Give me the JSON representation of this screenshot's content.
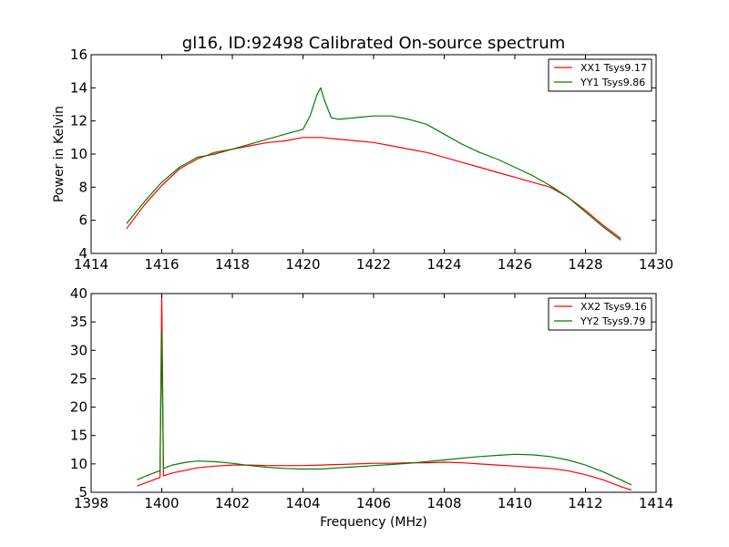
{
  "chart_data": [
    {
      "type": "line",
      "title": "gl16, ID:92498 Calibrated On-source spectrum",
      "xlabel": "",
      "ylabel": "Power in Kelvin",
      "xlim": [
        1414,
        1430
      ],
      "ylim": [
        4,
        16
      ],
      "xticks": [
        "1414",
        "1416",
        "1418",
        "1420",
        "1422",
        "1424",
        "1426",
        "1428",
        "1430"
      ],
      "yticks": [
        "4",
        "6",
        "8",
        "10",
        "12",
        "14",
        "16"
      ],
      "grid": false,
      "legend_position": "top-right",
      "colors": {
        "XX": "#ff0000",
        "YY": "#008000"
      },
      "series": [
        {
          "name": "XX1 Tsys9.17",
          "color": "#ff0000",
          "x": [
            1415.0,
            1415.5,
            1416.0,
            1416.5,
            1417.0,
            1417.5,
            1418.0,
            1418.5,
            1419.0,
            1419.5,
            1420.0,
            1420.5,
            1421.0,
            1421.5,
            1422.0,
            1422.5,
            1423.0,
            1423.5,
            1424.0,
            1424.5,
            1425.0,
            1425.5,
            1426.0,
            1426.5,
            1427.0,
            1427.5,
            1428.0,
            1428.5,
            1429.0
          ],
          "y": [
            5.5,
            6.9,
            8.1,
            9.1,
            9.7,
            10.1,
            10.3,
            10.5,
            10.7,
            10.8,
            11.0,
            11.0,
            10.9,
            10.8,
            10.7,
            10.5,
            10.3,
            10.1,
            9.8,
            9.5,
            9.2,
            8.9,
            8.6,
            8.3,
            8.0,
            7.4,
            6.6,
            5.7,
            4.9
          ]
        },
        {
          "name": "YY1 Tsys9.86",
          "color": "#008000",
          "x": [
            1415.0,
            1415.5,
            1416.0,
            1416.5,
            1417.0,
            1417.5,
            1418.0,
            1418.5,
            1419.0,
            1419.5,
            1420.0,
            1420.2,
            1420.4,
            1420.5,
            1420.6,
            1420.8,
            1421.0,
            1421.5,
            1422.0,
            1422.5,
            1423.0,
            1423.5,
            1424.0,
            1424.5,
            1425.0,
            1425.5,
            1426.0,
            1426.5,
            1427.0,
            1427.5,
            1428.0,
            1428.5,
            1429.0
          ],
          "y": [
            5.8,
            7.1,
            8.3,
            9.2,
            9.8,
            10.0,
            10.3,
            10.6,
            10.9,
            11.2,
            11.5,
            12.3,
            13.6,
            14.0,
            13.3,
            12.2,
            12.1,
            12.2,
            12.3,
            12.3,
            12.1,
            11.8,
            11.2,
            10.6,
            10.1,
            9.7,
            9.2,
            8.7,
            8.1,
            7.4,
            6.5,
            5.6,
            4.8
          ]
        }
      ]
    },
    {
      "type": "line",
      "title": "",
      "xlabel": "Frequency (MHz)",
      "ylabel": "",
      "xlim": [
        1398,
        1414
      ],
      "ylim": [
        5,
        40
      ],
      "xticks": [
        "1398",
        "1400",
        "1402",
        "1404",
        "1406",
        "1408",
        "1410",
        "1412",
        "1414"
      ],
      "yticks": [
        "5",
        "10",
        "15",
        "20",
        "25",
        "30",
        "35",
        "40"
      ],
      "grid": false,
      "legend_position": "top-right",
      "series": [
        {
          "name": "XX2 Tsys9.16",
          "color": "#ff0000",
          "x": [
            1399.3,
            1399.6,
            1399.9,
            1399.95,
            1400.0,
            1400.05,
            1400.3,
            1400.7,
            1401.0,
            1401.5,
            1402.0,
            1402.5,
            1403.0,
            1403.5,
            1404.0,
            1404.5,
            1405.0,
            1405.5,
            1406.0,
            1406.5,
            1407.0,
            1407.5,
            1408.0,
            1408.5,
            1409.0,
            1409.5,
            1410.0,
            1410.5,
            1411.0,
            1411.5,
            1412.0,
            1412.5,
            1413.0,
            1413.3
          ],
          "y": [
            6.1,
            6.8,
            7.5,
            7.6,
            40.0,
            7.9,
            8.4,
            8.9,
            9.3,
            9.6,
            9.8,
            9.8,
            9.7,
            9.7,
            9.7,
            9.8,
            9.9,
            10.0,
            10.1,
            10.1,
            10.2,
            10.2,
            10.3,
            10.2,
            10.0,
            9.8,
            9.6,
            9.4,
            9.2,
            8.8,
            8.1,
            7.2,
            6.0,
            5.4
          ]
        },
        {
          "name": "YY2 Tsys9.79",
          "color": "#008000",
          "x": [
            1399.3,
            1399.6,
            1399.9,
            1399.95,
            1400.0,
            1400.05,
            1400.3,
            1400.7,
            1401.0,
            1401.5,
            1402.0,
            1402.5,
            1403.0,
            1403.5,
            1404.0,
            1404.5,
            1405.0,
            1405.5,
            1406.0,
            1406.5,
            1407.0,
            1407.5,
            1408.0,
            1408.5,
            1409.0,
            1409.5,
            1410.0,
            1410.5,
            1411.0,
            1411.5,
            1412.0,
            1412.5,
            1413.0,
            1413.3
          ],
          "y": [
            7.2,
            8.0,
            8.7,
            8.8,
            33.5,
            9.2,
            9.8,
            10.3,
            10.5,
            10.4,
            10.1,
            9.7,
            9.4,
            9.2,
            9.1,
            9.1,
            9.3,
            9.5,
            9.7,
            9.9,
            10.1,
            10.4,
            10.7,
            11.0,
            11.3,
            11.5,
            11.7,
            11.6,
            11.3,
            10.7,
            9.8,
            8.6,
            7.2,
            6.3
          ]
        }
      ]
    }
  ]
}
